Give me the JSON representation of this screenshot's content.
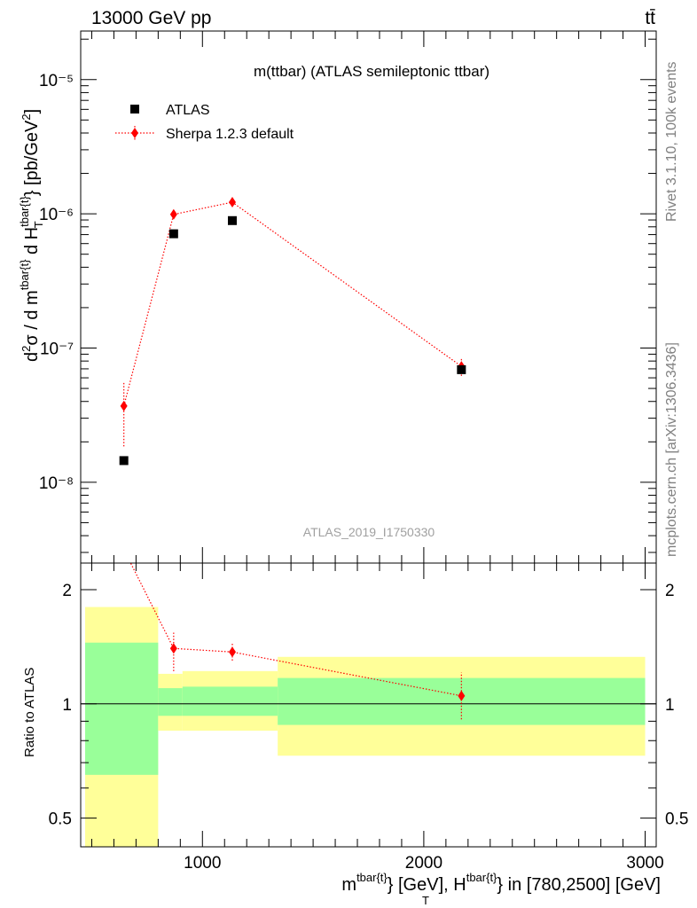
{
  "header": {
    "energy_label": "13000 GeV pp",
    "process_label": "tt̄"
  },
  "side_labels": {
    "rivet": "Rivet 3.1.10,  100k events",
    "source": "mcplots.cern.ch [arXiv:1306.3436]"
  },
  "chart_data": {
    "type": "scatter",
    "title": "m(ttbar) (ATLAS semileptonic ttbar)",
    "watermark": "ATLAS_2019_I1750330",
    "xlabel": "m^{tbar{t}} [GeV], H_T^{tbar{t}} in [780,2500] [GeV]",
    "xlim": [
      450,
      3050
    ],
    "x_ticks": [
      1000,
      2000,
      3000
    ],
    "main": {
      "ylabel": "d²σ / d m^{tbar{t}} d H_T^{tbar{t}} [pb/GeV²]",
      "y_scale": "log",
      "ylim": [
        2.5e-09,
        2.3e-05
      ],
      "y_ticks": [
        {
          "value": 1e-08,
          "label": "10⁻⁸"
        },
        {
          "value": 1e-07,
          "label": "10⁻⁷"
        },
        {
          "value": 1e-06,
          "label": "10⁻⁶"
        },
        {
          "value": 1e-05,
          "label": "10⁻⁵"
        }
      ],
      "legend_position": "top-left",
      "series": [
        {
          "name": "ATLAS",
          "color": "#000000",
          "marker": "square",
          "points": [
            {
              "x": 645,
              "y": 1.45e-08
            },
            {
              "x": 870,
              "y": 7.1e-07
            },
            {
              "x": 1135,
              "y": 8.9e-07
            },
            {
              "x": 2170,
              "y": 6.9e-08
            }
          ]
        },
        {
          "name": "Sherpa 1.2.3 default",
          "color": "#ff0000",
          "marker": "diamond",
          "line": "dotted",
          "points": [
            {
              "x": 645,
              "y": 3.7e-08,
              "err_lo": 1.85e-08,
              "err_hi": 5.6e-08
            },
            {
              "x": 870,
              "y": 9.9e-07,
              "err_lo": 9.3e-07,
              "err_hi": 1.08e-06
            },
            {
              "x": 1135,
              "y": 1.22e-06,
              "err_lo": 1.17e-06,
              "err_hi": 1.29e-06
            },
            {
              "x": 2170,
              "y": 7.3e-08,
              "err_lo": 6.2e-08,
              "err_hi": 8.5e-08
            }
          ]
        }
      ]
    },
    "ratio": {
      "ylabel": "Ratio to ATLAS",
      "y_scale": "log",
      "ylim": [
        0.42,
        2.35
      ],
      "y_ticks": [
        {
          "value": 0.5,
          "label": "0.5"
        },
        {
          "value": 1,
          "label": "1"
        },
        {
          "value": 2,
          "label": "2"
        }
      ],
      "bands": [
        {
          "x0": 470,
          "x1": 800,
          "yellow": [
            0.4,
            1.8
          ],
          "green": [
            0.65,
            1.45
          ]
        },
        {
          "x0": 800,
          "x1": 910,
          "yellow": [
            0.85,
            1.2
          ],
          "green": [
            0.93,
            1.1
          ]
        },
        {
          "x0": 910,
          "x1": 1340,
          "yellow": [
            0.85,
            1.22
          ],
          "green": [
            0.93,
            1.11
          ]
        },
        {
          "x0": 1340,
          "x1": 3000,
          "yellow": [
            0.73,
            1.33
          ],
          "green": [
            0.88,
            1.17
          ]
        }
      ],
      "series": [
        {
          "name": "Sherpa 1.2.3 default",
          "color": "#ff0000",
          "points": [
            {
              "x": 645,
              "y": 2.55
            },
            {
              "x": 870,
              "y": 1.4,
              "err_lo": 1.22,
              "err_hi": 1.54
            },
            {
              "x": 1135,
              "y": 1.37,
              "err_lo": 1.3,
              "err_hi": 1.45
            },
            {
              "x": 2170,
              "y": 1.05,
              "err_lo": 0.91,
              "err_hi": 1.21
            }
          ]
        }
      ]
    }
  }
}
